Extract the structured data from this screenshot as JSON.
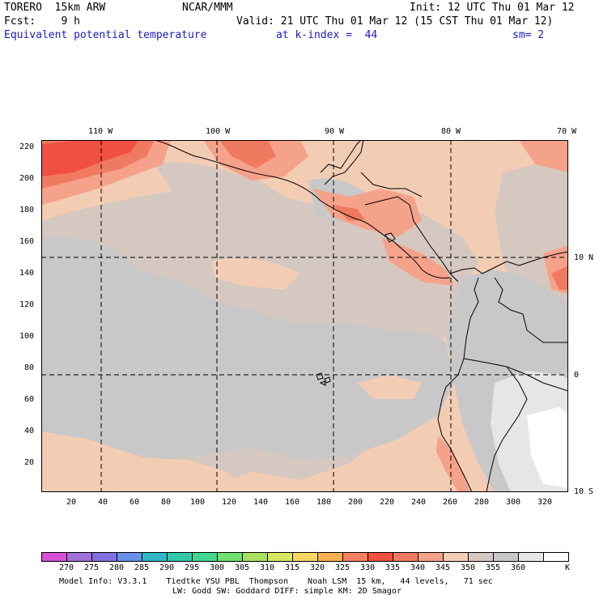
{
  "header": {
    "model": "TORERO  15km ARW",
    "center": "NCAR/MMM",
    "init": "Init: 12 UTC Thu 01 Mar 12",
    "fcst": "Fcst:    9 h",
    "valid": "Valid: 21 UTC Thu 01 Mar 12 (15 CST Thu 01 Mar 12)",
    "field": "Equivalent potential temperature",
    "level": "at k-index =  44",
    "smooth": "sm= 2"
  },
  "map": {
    "lon_labels": [
      "110 W",
      "100 W",
      "90 W",
      "80 W",
      "70 W"
    ],
    "lat_labels": [
      "10 N",
      "0",
      "10 S"
    ],
    "y_ticks": [
      "220",
      "200",
      "180",
      "160",
      "140",
      "120",
      "100",
      "80",
      "60",
      "40",
      "20"
    ],
    "x_ticks": [
      "20",
      "40",
      "60",
      "80",
      "100",
      "120",
      "140",
      "160",
      "180",
      "200",
      "220",
      "240",
      "260",
      "280",
      "300",
      "320"
    ],
    "shading_colors": {
      "background_340": "#f2cdb4",
      "c345": "#d5c8c0",
      "c350": "#c8c8c8",
      "c355": "#e6e6e6",
      "c360": "#ffffff",
      "c330": "#f07a60",
      "c335": "#f5a28a",
      "c325": "#f05040"
    }
  },
  "colorbar": {
    "labels": [
      "270",
      "275",
      "280",
      "285",
      "290",
      "295",
      "300",
      "305",
      "310",
      "315",
      "320",
      "325",
      "330",
      "335",
      "340",
      "345",
      "350",
      "355",
      "360"
    ],
    "unit": "K",
    "colors": [
      "#d84fd8",
      "#a070d8",
      "#8070e0",
      "#6890e8",
      "#30b8c8",
      "#30c8a8",
      "#40d890",
      "#70e070",
      "#a8e060",
      "#d8e860",
      "#f8d860",
      "#f8b050",
      "#f88060",
      "#f05040",
      "#f07a60",
      "#f5a28a",
      "#f2cdb4",
      "#d5c8c0",
      "#c8c8c8",
      "#e6e6e6",
      "#ffffff"
    ]
  },
  "footer": {
    "line1": "Model Info: V3.3.1    Tiedtke YSU PBL  Thompson    Noah LSM  15 km,   44 levels,   71 sec",
    "line2": "LW: Godd SW: Goddard DIFF: simple KM: 2D Smagor"
  }
}
